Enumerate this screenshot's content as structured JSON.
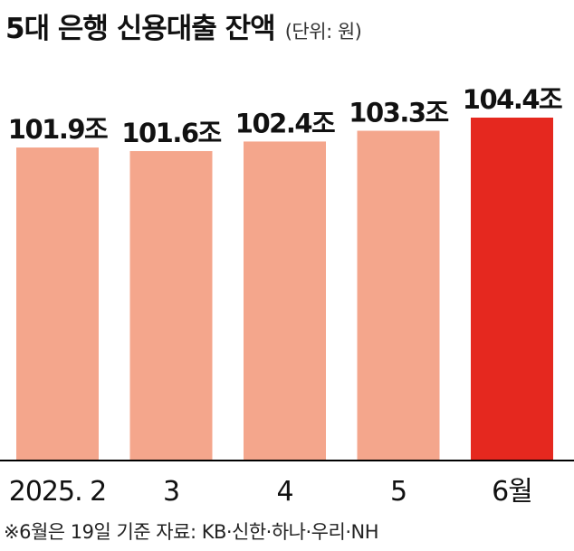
{
  "title": "5대 은행 신용대출 잔액",
  "unit": "(단위: 원)",
  "footnote": "※6월은 19일 기준  자료: KB·신한·하나·우리·NH",
  "colors": {
    "bar": "#f4a68c",
    "highlight": "#e5281f",
    "baseline": "#000000"
  },
  "chart_data": {
    "type": "bar",
    "categories": [
      "2025. 2",
      "3",
      "4",
      "5",
      "6월"
    ],
    "values": [
      101.9,
      101.6,
      102.4,
      103.3,
      104.4
    ],
    "value_labels": [
      "101.9조",
      "101.6조",
      "102.4조",
      "103.3조",
      "104.4조"
    ],
    "highlight_index": 4,
    "grid": false,
    "legend": "none"
  }
}
